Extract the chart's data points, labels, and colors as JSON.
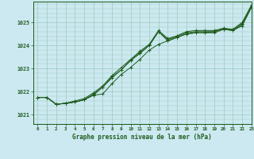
{
  "background_color": "#cce8f0",
  "grid_color": "#99ccbb",
  "line_color": "#1e5c1e",
  "xlabel": "Graphe pression niveau de la mer (hPa)",
  "xlim": [
    -0.5,
    23
  ],
  "ylim": [
    1020.6,
    1025.9
  ],
  "yticks": [
    1021,
    1022,
    1023,
    1024,
    1025
  ],
  "xticks": [
    0,
    1,
    2,
    3,
    4,
    5,
    6,
    7,
    8,
    9,
    10,
    11,
    12,
    13,
    14,
    15,
    16,
    17,
    18,
    19,
    20,
    21,
    22,
    23
  ],
  "series1": [
    1021.75,
    1021.75,
    1021.45,
    1021.5,
    1021.55,
    1021.65,
    1021.85,
    1021.9,
    1022.35,
    1022.75,
    1023.05,
    1023.4,
    1023.8,
    1024.05,
    1024.2,
    1024.35,
    1024.5,
    1024.55,
    1024.55,
    1024.6,
    1024.7,
    1024.65,
    1024.85,
    1025.65
  ],
  "series2": [
    1021.75,
    1021.75,
    1021.45,
    1021.5,
    1021.55,
    1021.65,
    1021.85,
    1022.2,
    1022.6,
    1022.95,
    1023.35,
    1023.65,
    1024.0,
    1024.6,
    1024.2,
    1024.35,
    1024.5,
    1024.55,
    1024.55,
    1024.55,
    1024.7,
    1024.65,
    1024.9,
    1025.65
  ],
  "series3": [
    1021.75,
    1021.75,
    1021.45,
    1021.5,
    1021.55,
    1021.65,
    1021.9,
    1022.2,
    1022.65,
    1022.95,
    1023.35,
    1023.7,
    1024.0,
    1024.6,
    1024.25,
    1024.4,
    1024.55,
    1024.6,
    1024.6,
    1024.6,
    1024.72,
    1024.68,
    1024.95,
    1025.7
  ],
  "series4": [
    1021.75,
    1021.75,
    1021.45,
    1021.5,
    1021.6,
    1021.7,
    1021.95,
    1022.25,
    1022.7,
    1023.05,
    1023.4,
    1023.75,
    1024.05,
    1024.65,
    1024.3,
    1024.42,
    1024.6,
    1024.65,
    1024.65,
    1024.65,
    1024.75,
    1024.7,
    1025.0,
    1025.75
  ]
}
